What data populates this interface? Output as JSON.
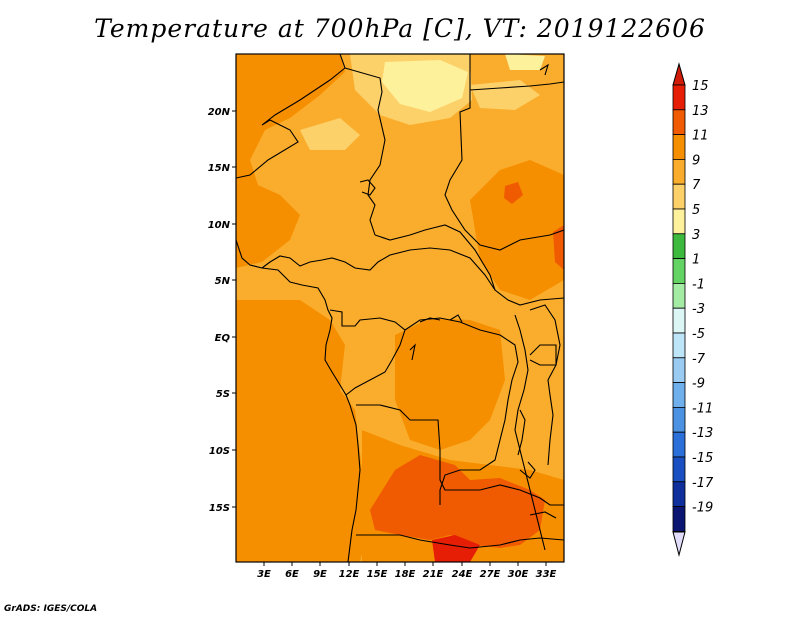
{
  "title": "Temperature at 700hPa [C], VT: 2019122606",
  "credit": "GrADS: IGES/COLA",
  "map": {
    "lat_labels": [
      "20N",
      "15N",
      "10N",
      "5N",
      "EQ",
      "5S",
      "10S",
      "15S"
    ],
    "lon_labels": [
      "3E",
      "6E",
      "9E",
      "12E",
      "15E",
      "18E",
      "21E",
      "24E",
      "27E",
      "30E",
      "33E"
    ]
  },
  "colorbar": {
    "labels": [
      "15",
      "13",
      "11",
      "9",
      "7",
      "5",
      "3",
      "1",
      "-1",
      "-3",
      "-5",
      "-7",
      "-9",
      "-11",
      "-13",
      "-15",
      "-17",
      "-19"
    ],
    "colors": [
      "#e61e05",
      "#f05a00",
      "#f68f00",
      "#faad2c",
      "#fdd16a",
      "#fef19b",
      "#3dba3d",
      "#63d463",
      "#a4eba4",
      "#dcf6f6",
      "#bde4f7",
      "#99cbf3",
      "#6fb0ec",
      "#4b92e3",
      "#2b6fd8",
      "#1a4fc2",
      "#0f2f9c",
      "#0a1672"
    ],
    "top_arrow_color": "#d01c08",
    "bottom_arrow_color": "#e0dcfa"
  }
}
